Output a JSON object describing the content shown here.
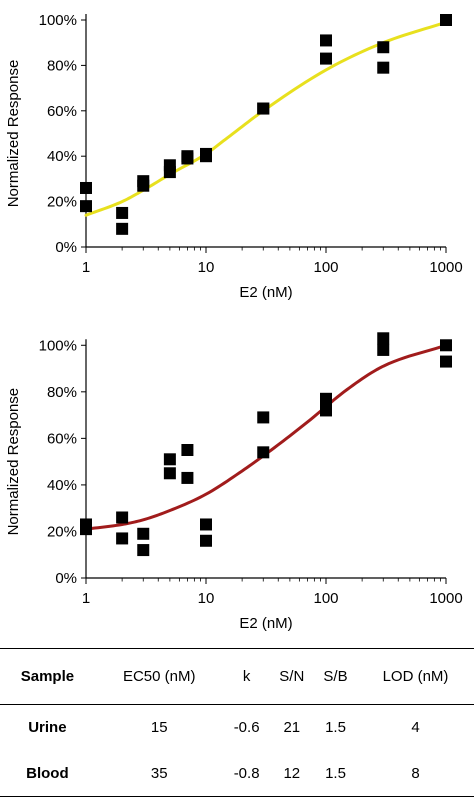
{
  "charts": [
    {
      "type": "scatter",
      "ylabel": "Normalized Response",
      "xlabel": "E2 (nM)",
      "x_scale": "log",
      "xlim": [
        1,
        1000
      ],
      "ylim": [
        0,
        100
      ],
      "x_ticks": [
        "1",
        "10",
        "100",
        "1000"
      ],
      "y_ticks": [
        "0%",
        "20%",
        "40%",
        "60%",
        "80%",
        "100%"
      ],
      "fit_color": "#e8e01e",
      "marker_color": "#000000",
      "points": [
        {
          "x": 1,
          "y": 26
        },
        {
          "x": 1,
          "y": 18
        },
        {
          "x": 2,
          "y": 15
        },
        {
          "x": 2,
          "y": 8
        },
        {
          "x": 3,
          "y": 29
        },
        {
          "x": 3,
          "y": 27
        },
        {
          "x": 5,
          "y": 36
        },
        {
          "x": 5,
          "y": 33
        },
        {
          "x": 7,
          "y": 40
        },
        {
          "x": 7,
          "y": 39
        },
        {
          "x": 10,
          "y": 41
        },
        {
          "x": 10,
          "y": 40
        },
        {
          "x": 30,
          "y": 61
        },
        {
          "x": 30,
          "y": 61
        },
        {
          "x": 100,
          "y": 91
        },
        {
          "x": 100,
          "y": 83
        },
        {
          "x": 300,
          "y": 88
        },
        {
          "x": 300,
          "y": 79
        },
        {
          "x": 1000,
          "y": 100
        },
        {
          "x": 1000,
          "y": 100
        }
      ],
      "fit": {
        "x": [
          1,
          2,
          3,
          5,
          10,
          15,
          30,
          100,
          300,
          1000
        ],
        "y": [
          14,
          20,
          25,
          32,
          41,
          48,
          60,
          78,
          90,
          99
        ]
      }
    },
    {
      "type": "scatter",
      "ylabel": "Normalized Response",
      "xlabel": "E2 (nM)",
      "x_scale": "log",
      "xlim": [
        1,
        1000
      ],
      "ylim": [
        0,
        110
      ],
      "x_ticks": [
        "1",
        "10",
        "100",
        "1000"
      ],
      "y_ticks": [
        "0%",
        "20%",
        "40%",
        "60%",
        "80%",
        "100%"
      ],
      "fit_color": "#a11c1c",
      "marker_color": "#000000",
      "points": [
        {
          "x": 1,
          "y": 23
        },
        {
          "x": 1,
          "y": 21
        },
        {
          "x": 2,
          "y": 26
        },
        {
          "x": 2,
          "y": 17
        },
        {
          "x": 3,
          "y": 19
        },
        {
          "x": 3,
          "y": 12
        },
        {
          "x": 5,
          "y": 51
        },
        {
          "x": 5,
          "y": 45
        },
        {
          "x": 7,
          "y": 55
        },
        {
          "x": 7,
          "y": 43
        },
        {
          "x": 10,
          "y": 23
        },
        {
          "x": 10,
          "y": 16
        },
        {
          "x": 30,
          "y": 69
        },
        {
          "x": 30,
          "y": 54
        },
        {
          "x": 100,
          "y": 77
        },
        {
          "x": 100,
          "y": 72
        },
        {
          "x": 300,
          "y": 103
        },
        {
          "x": 300,
          "y": 98
        },
        {
          "x": 1000,
          "y": 100
        },
        {
          "x": 1000,
          "y": 93
        }
      ],
      "fit": {
        "x": [
          1,
          2,
          3,
          5,
          10,
          20,
          35,
          70,
          150,
          300,
          1000
        ],
        "y": [
          21,
          23,
          25,
          29,
          36,
          46,
          55,
          67,
          81,
          91,
          100
        ]
      }
    }
  ],
  "table": {
    "headers": [
      "Sample",
      "EC50 (nM)",
      "k",
      "S/N",
      "S/B",
      "LOD (nM)"
    ],
    "rows": [
      [
        "Urine",
        "15",
        "-0.6",
        "21",
        "1.5",
        "4"
      ],
      [
        "Blood",
        "35",
        "-0.8",
        "12",
        "1.5",
        "8"
      ]
    ]
  }
}
